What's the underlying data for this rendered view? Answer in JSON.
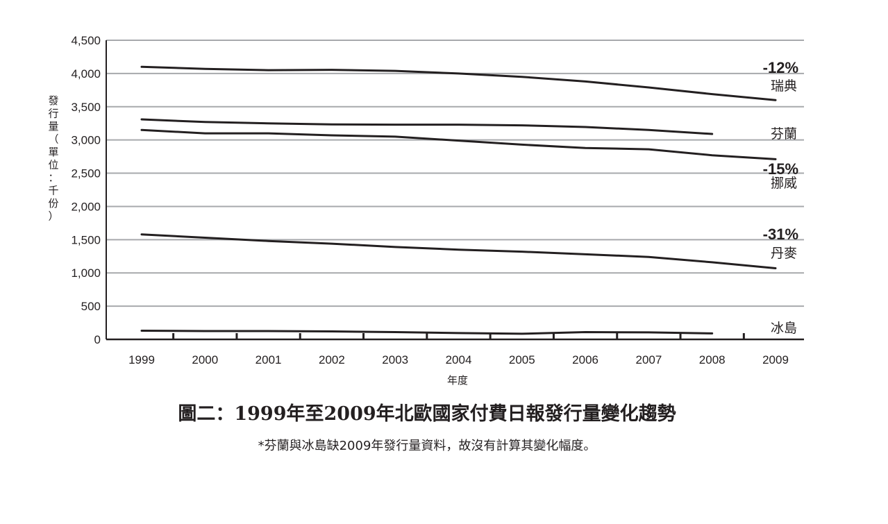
{
  "chart_data": {
    "type": "line",
    "x": [
      "1999",
      "2000",
      "2001",
      "2002",
      "2003",
      "2004",
      "2005",
      "2006",
      "2007",
      "2008",
      "2009"
    ],
    "xlabel": "年度",
    "ylabel": "發行量（單位：千份）",
    "ylim": [
      0,
      4500
    ],
    "yticks": [
      0,
      500,
      1000,
      1500,
      2000,
      2500,
      3000,
      3500,
      4000,
      4500
    ],
    "ytick_labels": [
      "0",
      "500",
      "1,000",
      "1,500",
      "2,000",
      "2,500",
      "3,000",
      "3,500",
      "4,000",
      "4,500"
    ],
    "grid": true,
    "series": [
      {
        "name": "瑞典",
        "change": "-12%",
        "values": [
          4100,
          4070,
          4050,
          4055,
          4040,
          4000,
          3950,
          3880,
          3790,
          3690,
          3600
        ]
      },
      {
        "name": "芬蘭",
        "change": "",
        "values": [
          3310,
          3270,
          3250,
          3235,
          3230,
          3230,
          3220,
          3195,
          3150,
          3090,
          null
        ]
      },
      {
        "name": "挪威",
        "change": "-15%",
        "values": [
          3150,
          3100,
          3100,
          3070,
          3050,
          2990,
          2930,
          2880,
          2860,
          2770,
          2710
        ]
      },
      {
        "name": "丹麥",
        "change": "-31%",
        "values": [
          1580,
          1530,
          1480,
          1440,
          1390,
          1350,
          1320,
          1280,
          1240,
          1160,
          1070
        ]
      },
      {
        "name": "冰島",
        "change": "",
        "values": [
          130,
          125,
          125,
          120,
          110,
          95,
          85,
          110,
          105,
          90,
          null
        ]
      }
    ],
    "title": "圖二：1999年至2009年北歐國家付費日報發行量變化趨勢",
    "note": "*芬蘭與冰島缺2009年發行量資料，故沒有計算其變化幅度。"
  }
}
